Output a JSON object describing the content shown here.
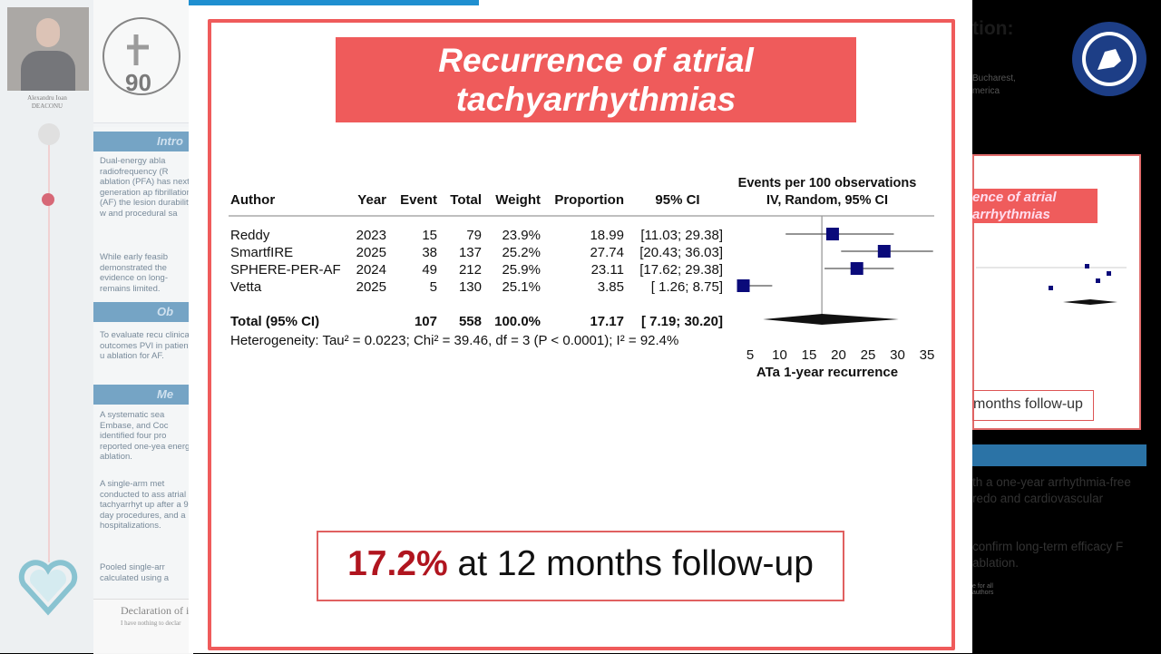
{
  "poster": {
    "author_name_line1": "Alexandru Ioan",
    "author_name_line2": "DEACONU",
    "header_right_title": "tion:",
    "header_right_aff_line1": "Bucharest,",
    "header_right_aff_line2": "merica",
    "sections": {
      "intro": "Intro",
      "objective": "Ob",
      "methods": "Me"
    },
    "intro_bullets": [
      "Dual-energy abla radiofrequency (R ablation (PFA) has next-generation ap fibrillation (AF) the lesion durability w and procedural sa",
      "While early feasib demonstrated the evidence on long- remains limited."
    ],
    "objective_bullets": [
      "To evaluate recu clinical outcomes PVI in patients u ablation for AF."
    ],
    "methods_bullets": [
      "A systematic sea Embase, and Coc identified four pro reported one-yea energy ablation.",
      "A single-arm met conducted to ass atrial tachyarrhyt up after a 90-day procedures, and a hospitalizations.",
      "Pooled single-arr calculated using a"
    ],
    "declaration_title": "Declaration of i",
    "declaration_text": "I have nothing to declar",
    "right": {
      "red_title": "ence of atrial arrhythmias",
      "follow": "months follow-up",
      "text1": "th a one-year arrhythmia-free redo and cardiovascular",
      "text2": "confirm long-term efficacy F ablation.",
      "small": "e for all authors"
    },
    "colors": {
      "accent_red": "#ef5b5b",
      "section_blue": "#2b73a6",
      "dark_red": "#b0151f",
      "marker_navy": "#0a0a7a"
    }
  },
  "slide": {
    "title": "Recurrence of atrial tachyarrhythmias",
    "result_value": "17.2%",
    "result_text": " at 12 months follow-up"
  },
  "chart_data": {
    "type": "forest",
    "columns": [
      "Author",
      "Year",
      "Event",
      "Total",
      "Weight",
      "Proportion",
      "95% CI"
    ],
    "plot_header_line1": "Events per 100 observations",
    "plot_header_line2": "IV, Random, 95% CI",
    "studies": [
      {
        "author": "Reddy",
        "year": "2023",
        "event": "15",
        "total": "79",
        "weight": "23.9%",
        "proportion": "18.99",
        "ci_text": "[11.03; 29.38]",
        "est": 18.99,
        "lo": 11.03,
        "hi": 29.38
      },
      {
        "author": "SmartfIRE",
        "year": "2025",
        "event": "38",
        "total": "137",
        "weight": "25.2%",
        "proportion": "27.74",
        "ci_text": "[20.43; 36.03]",
        "est": 27.74,
        "lo": 20.43,
        "hi": 36.03
      },
      {
        "author": "SPHERE-PER-AF",
        "year": "2024",
        "event": "49",
        "total": "212",
        "weight": "25.9%",
        "proportion": "23.11",
        "ci_text": "[17.62; 29.38]",
        "est": 23.11,
        "lo": 17.62,
        "hi": 29.38
      },
      {
        "author": "Vetta",
        "year": "2025",
        "event": "5",
        "total": "130",
        "weight": "25.1%",
        "proportion": "3.85",
        "ci_text": "[ 1.26;  8.75]",
        "est": 3.85,
        "lo": 1.26,
        "hi": 8.75
      }
    ],
    "total": {
      "label": "Total (95% CI)",
      "event": "107",
      "total": "558",
      "weight": "100.0%",
      "proportion": "17.17",
      "ci_text": "[ 7.19; 30.20]",
      "est": 17.17,
      "lo": 7.19,
      "hi": 30.2
    },
    "heterogeneity": "Heterogeneity: Tau² = 0.0223; Chi² = 39.46, df = 3 (P < 0.0001); I² = 92.4%",
    "xaxis": {
      "ticks": [
        5,
        10,
        15,
        20,
        25,
        30,
        35
      ],
      "range": [
        5,
        35
      ],
      "label": "ATa 1-year recurrence"
    },
    "reference_line": 17.17
  }
}
